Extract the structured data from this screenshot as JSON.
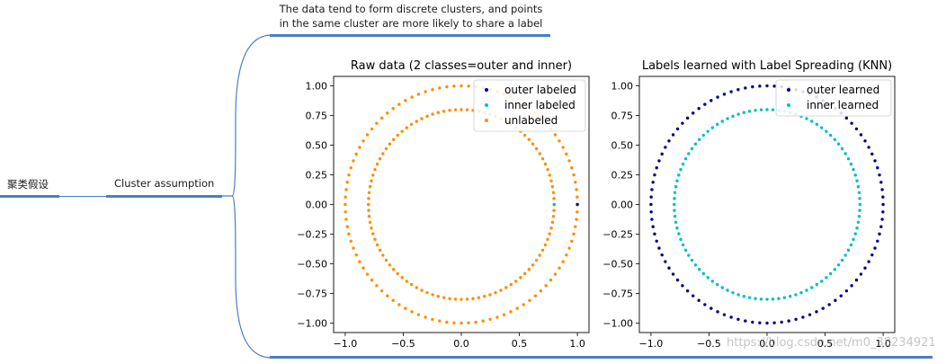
{
  "mindmap": {
    "root_label": "聚类假设",
    "child_label": "Cluster assumption",
    "note_line1": "The data tend to form discrete clusters, and points",
    "note_line2": "in the same cluster are more likely to share a label",
    "line_color": "#4a7fbf"
  },
  "chart_data": [
    {
      "type": "scatter",
      "title": "Raw data (2 classes=outer and inner)",
      "xlim": [
        -1.1,
        1.1
      ],
      "ylim": [
        -1.08,
        1.08
      ],
      "xticks": [
        -1.0,
        -0.5,
        0.0,
        0.5,
        1.0
      ],
      "xtick_labels": [
        "−1.0",
        "−0.5",
        "0.0",
        "0.5",
        "1.0"
      ],
      "yticks": [
        -1.0,
        -0.75,
        -0.5,
        -0.25,
        0.0,
        0.25,
        0.5,
        0.75,
        1.0
      ],
      "ytick_labels": [
        "−1.00",
        "−0.75",
        "−0.50",
        "−0.25",
        "0.00",
        "0.25",
        "0.50",
        "0.75",
        "1.00"
      ],
      "legend_position": "top-right",
      "legend": [
        {
          "label": "outer labeled",
          "color": "#000080"
        },
        {
          "label": "inner labeled",
          "color": "#00bfbf"
        },
        {
          "label": "unlabeled",
          "color": "#ff8c00"
        }
      ],
      "series": [
        {
          "name": "unlabeled",
          "kind": "circle",
          "radius": 1.0,
          "n_points": 100,
          "color": "#ff8c00"
        },
        {
          "name": "unlabeled",
          "kind": "circle",
          "radius": 0.8,
          "n_points": 100,
          "color": "#ff8c00"
        },
        {
          "name": "outer labeled",
          "kind": "points",
          "x": [
            1.0
          ],
          "y": [
            0.0
          ],
          "color": "#000080"
        },
        {
          "name": "inner labeled",
          "kind": "points",
          "x": [
            0.8
          ],
          "y": [
            0.0
          ],
          "color": "#00bfbf"
        }
      ]
    },
    {
      "type": "scatter",
      "title": "Labels learned with Label Spreading (KNN)",
      "xlim": [
        -1.1,
        1.1
      ],
      "ylim": [
        -1.08,
        1.08
      ],
      "xticks": [
        -1.0,
        -0.5,
        0.0,
        0.5,
        1.0
      ],
      "xtick_labels": [
        "−1.0",
        "−0.5",
        "0.0",
        "0.5",
        "1.0"
      ],
      "yticks": [
        -1.0,
        -0.75,
        -0.5,
        -0.25,
        0.0,
        0.25,
        0.5,
        0.75,
        1.0
      ],
      "ytick_labels": [
        "−1.00",
        "−0.75",
        "−0.50",
        "−0.25",
        "0.00",
        "0.25",
        "0.50",
        "0.75",
        "1.00"
      ],
      "legend_position": "top-right",
      "legend": [
        {
          "label": "outer learned",
          "color": "#000080"
        },
        {
          "label": "inner learned",
          "color": "#00bfbf"
        }
      ],
      "series": [
        {
          "name": "outer learned",
          "kind": "circle",
          "radius": 1.0,
          "n_points": 100,
          "color": "#000080"
        },
        {
          "name": "inner learned",
          "kind": "circle",
          "radius": 0.8,
          "n_points": 100,
          "color": "#00bfbf"
        }
      ]
    }
  ],
  "watermark": "https://blog.csdn.net/m0_38234921"
}
